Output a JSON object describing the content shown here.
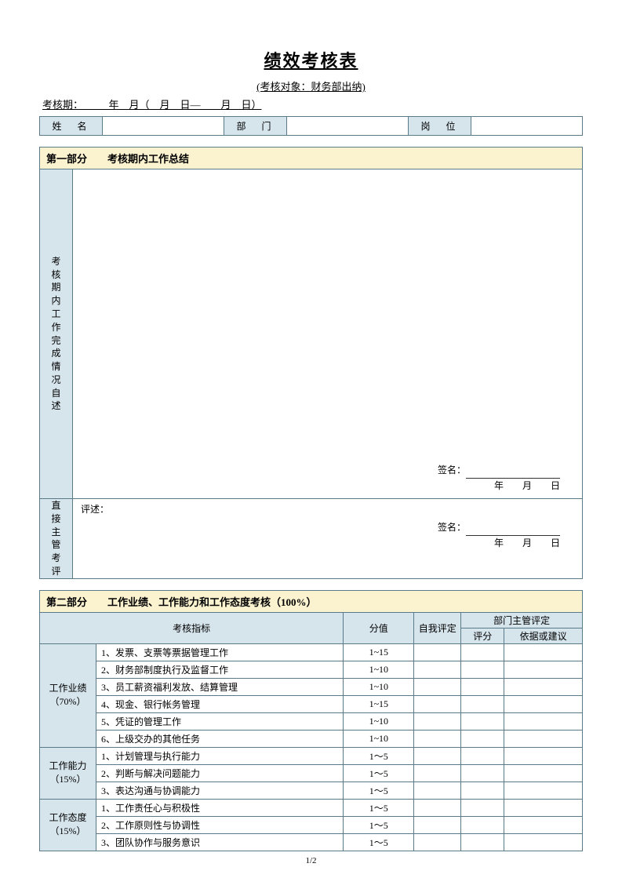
{
  "title": "绩效考核表",
  "subtitle": "(考核对象：财务部出纳)",
  "period_line": "考核期：　　　年　月（　月　日—　　月　日）",
  "info": {
    "name_label": "姓　名",
    "dept_label": "部　门",
    "post_label": "岗　位"
  },
  "section1": {
    "header": "第一部分　　考核期内工作总结",
    "self_label": "考核期内工作完成情况自述",
    "supervisor_label": "直接主管考评",
    "sign": "签名：",
    "date_line": "年　　月　　日",
    "review_prefix": "评述："
  },
  "section2": {
    "header": "第二部分　　工作业绩、工作能力和工作态度考核（100%）",
    "col_indicator": "考核指标",
    "col_value": "分值",
    "col_self": "自我评定",
    "col_dept": "部门主管评定",
    "col_score": "评分",
    "col_basis": "依据或建议",
    "groups": [
      {
        "name": "工作业绩",
        "weight": "（70%）",
        "items": [
          {
            "no": "1、",
            "text": "发票、支票等票据管理工作",
            "range": "1~15"
          },
          {
            "no": "2、",
            "text": "财务部制度执行及监督工作",
            "range": "1~10"
          },
          {
            "no": "3、",
            "text": "员工薪资福利发放、结算管理",
            "range": "1~10"
          },
          {
            "no": "4、",
            "text": "现金、银行帐务管理",
            "range": "1~15"
          },
          {
            "no": "5、",
            "text": "凭证的管理工作",
            "range": "1~10"
          },
          {
            "no": "6、",
            "text": "上级交办的其他任务",
            "range": "1~10"
          }
        ]
      },
      {
        "name": "工作能力",
        "weight": "（15%）",
        "items": [
          {
            "no": "1、",
            "text": "计划管理与执行能力",
            "range": "1～5"
          },
          {
            "no": "2、",
            "text": "判断与解决问题能力",
            "range": "1～5"
          },
          {
            "no": "3、",
            "text": "表达沟通与协调能力",
            "range": "1～5"
          }
        ]
      },
      {
        "name": "工作态度",
        "weight": "（15%）",
        "items": [
          {
            "no": "1、",
            "text": "工作责任心与积极性",
            "range": "1～5"
          },
          {
            "no": "2、",
            "text": "工作原则性与协调性",
            "range": "1～5"
          },
          {
            "no": "3、",
            "text": "团队协作与服务意识",
            "range": "1～5"
          }
        ]
      }
    ]
  },
  "footer": "1/2",
  "colors": {
    "header_bg": "#fbf3d0",
    "label_bg": "#d6e4ec",
    "border": "#5a7a8a"
  }
}
